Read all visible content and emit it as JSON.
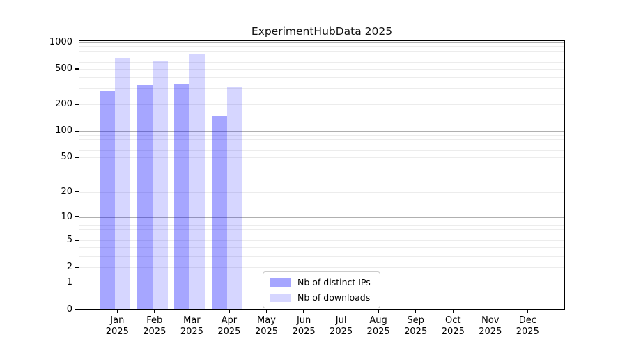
{
  "chart_data": {
    "type": "bar",
    "title": "ExperimentHubData 2025",
    "x_tick_year": "2025",
    "categories": [
      "Jan 2025",
      "Feb 2025",
      "Mar 2025",
      "Apr 2025",
      "May 2025",
      "Jun 2025",
      "Jul 2025",
      "Aug 2025",
      "Sep 2025",
      "Oct 2025",
      "Nov 2025",
      "Dec 2025"
    ],
    "x_tick_months": [
      "Jan",
      "Feb",
      "Mar",
      "Apr",
      "May",
      "Jun",
      "Jul",
      "Aug",
      "Sep",
      "Oct",
      "Nov",
      "Dec"
    ],
    "series": [
      {
        "name": "Nb of distinct IPs",
        "color": "rgba(0,0,255,0.35)",
        "swatch_hex": "#a8a8f8",
        "values": [
          280,
          330,
          340,
          150,
          0,
          0,
          0,
          0,
          0,
          0,
          0,
          0
        ]
      },
      {
        "name": "Nb of downloads",
        "color": "rgba(0,0,255,0.16)",
        "swatch_hex": "#d8d8f8",
        "values": [
          670,
          615,
          740,
          315,
          0,
          0,
          0,
          0,
          0,
          0,
          0,
          0
        ]
      }
    ],
    "yscale": "log10(1+x)",
    "ylim": [
      0,
      1045
    ],
    "yticks": [
      0,
      1,
      2,
      5,
      10,
      20,
      50,
      100,
      200,
      500,
      1000
    ],
    "major_gridlines": [
      1,
      10,
      100,
      1000
    ],
    "minor_gridlines": [
      2,
      3,
      4,
      5,
      6,
      7,
      8,
      9,
      20,
      30,
      40,
      50,
      60,
      70,
      80,
      90,
      200,
      300,
      400,
      500,
      600,
      700,
      800,
      900
    ],
    "grid": "horizontal",
    "legend_position": "lower center",
    "xlabel": "",
    "ylabel": ""
  }
}
